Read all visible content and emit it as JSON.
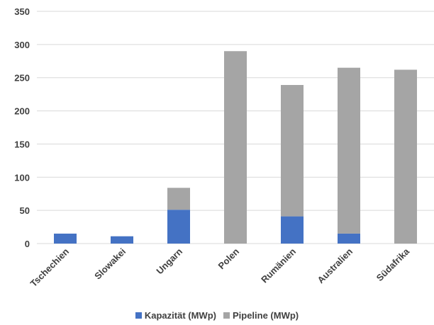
{
  "chart_data": {
    "type": "bar",
    "stacked": true,
    "categories": [
      "Tschechien",
      "Slowakei",
      "Ungarn",
      "Polen",
      "Rumänien",
      "Australien",
      "Südafrika"
    ],
    "series": [
      {
        "name": "Kapazität (MWp)",
        "color": "#4472C4",
        "values": [
          15,
          11,
          51,
          0,
          41,
          15,
          0
        ]
      },
      {
        "name": "Pipeline (MWp)",
        "color": "#A5A5A5",
        "values": [
          0,
          0,
          33,
          290,
          198,
          250,
          262
        ]
      }
    ],
    "ylim": [
      0,
      350
    ],
    "yticks": [
      0,
      50,
      100,
      150,
      200,
      250,
      300,
      350
    ],
    "grid": true,
    "legend_position": "bottom",
    "title": "",
    "xlabel": "",
    "ylabel": ""
  }
}
